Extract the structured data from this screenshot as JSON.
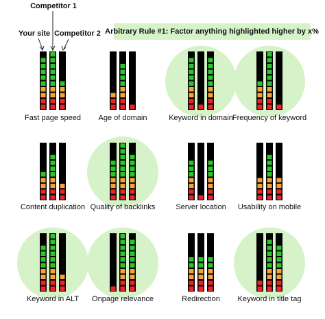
{
  "legend": {
    "your_site": "Your site",
    "competitor_1": "Competitor 1",
    "competitor_2": "Competitor 2"
  },
  "rule": "Arbitrary Rule #1: Factor anything highlighted higher by x%",
  "segments": 10,
  "panels": [
    {
      "label": "Fast page speed",
      "highlighted": false,
      "levels": [
        9,
        10,
        5
      ]
    },
    {
      "label": "Age of domain",
      "highlighted": false,
      "levels": [
        3,
        8,
        1
      ]
    },
    {
      "label": "Keyword in domain",
      "highlighted": true,
      "levels": [
        9,
        1,
        9
      ]
    },
    {
      "label": "Frequency of keyword",
      "highlighted": true,
      "levels": [
        5,
        10,
        1
      ]
    },
    {
      "label": "Content duplication",
      "highlighted": false,
      "levels": [
        5,
        8,
        3
      ]
    },
    {
      "label": "Quality of backlinks",
      "highlighted": true,
      "levels": [
        7,
        10,
        8
      ]
    },
    {
      "label": "Server location",
      "highlighted": false,
      "levels": [
        7,
        1,
        7
      ]
    },
    {
      "label": "Usability on mobile",
      "highlighted": false,
      "levels": [
        4,
        8,
        4
      ]
    },
    {
      "label": "Keyword in ALT",
      "highlighted": true,
      "levels": [
        8,
        10,
        3
      ]
    },
    {
      "label": "Onpage relevance",
      "highlighted": true,
      "levels": [
        1,
        10,
        9
      ]
    },
    {
      "label": "Redirection",
      "highlighted": false,
      "levels": [
        6,
        6,
        6
      ]
    },
    {
      "label": "Keyword in title tag",
      "highlighted": true,
      "levels": [
        2,
        9,
        8
      ]
    }
  ]
}
